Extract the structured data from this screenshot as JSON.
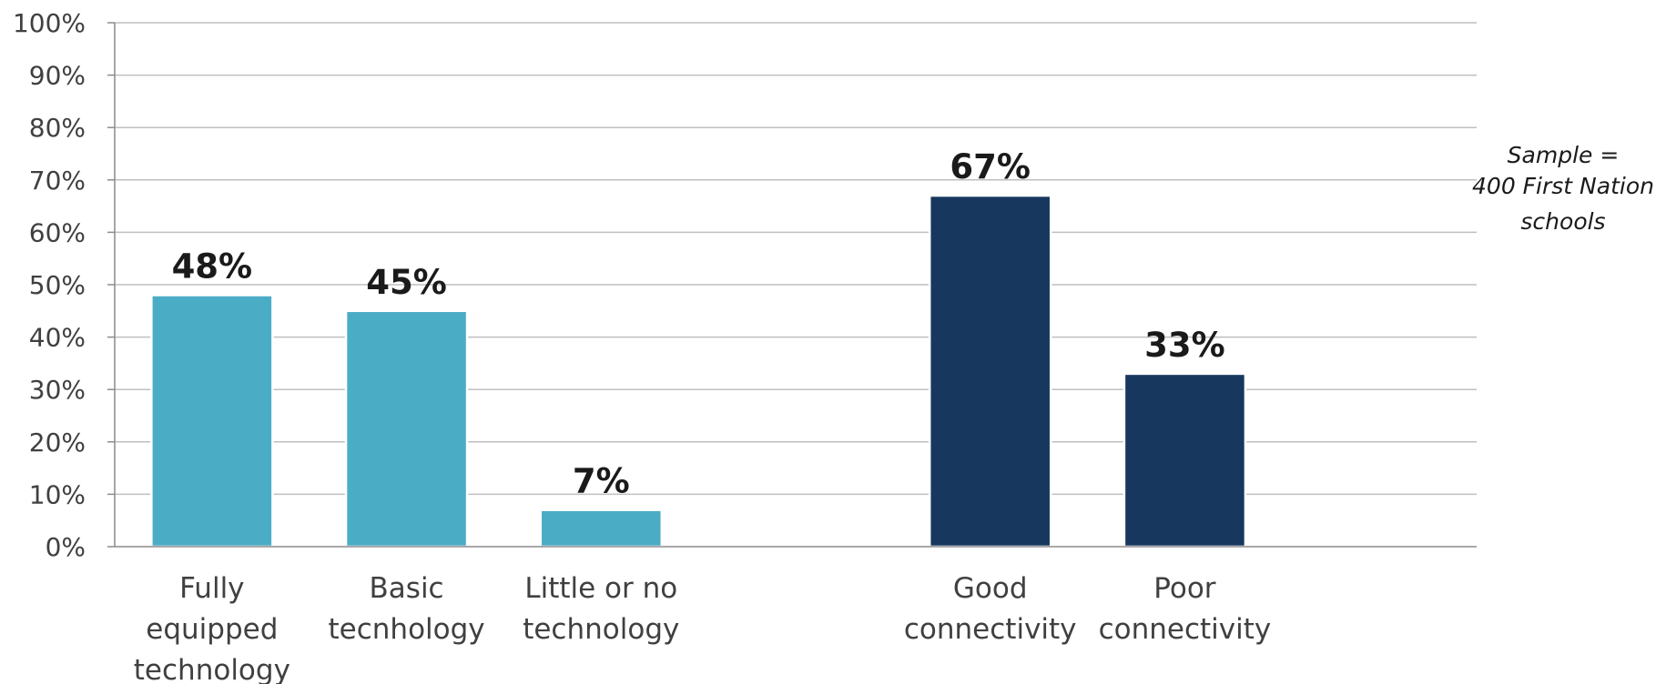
{
  "chart_data": {
    "type": "bar",
    "categories": [
      [
        "Fully",
        "equipped",
        "technology"
      ],
      [
        "Basic",
        "tecnhology"
      ],
      [
        "Little or no",
        "technology"
      ],
      [
        "Good",
        "connectivity"
      ],
      [
        "Poor",
        "connectivity"
      ]
    ],
    "values": [
      48,
      45,
      7,
      67,
      33
    ],
    "data_labels": [
      "48%",
      "45%",
      "7%",
      "67%",
      "33%"
    ],
    "groups": [
      {
        "categories": [
          0,
          1,
          2
        ],
        "color": "#4bacc6"
      },
      {
        "categories": [
          3,
          4
        ],
        "color": "#17375e"
      }
    ],
    "ylim": [
      0,
      100
    ],
    "y_ticks": [
      "0%",
      "10%",
      "20%",
      "30%",
      "40%",
      "50%",
      "60%",
      "70%",
      "80%",
      "90%",
      "100%"
    ],
    "grid": true,
    "title": "",
    "xlabel": "",
    "ylabel": ""
  },
  "annotation": {
    "lines": [
      "Sample =",
      "400 First Nation",
      "schools"
    ]
  }
}
